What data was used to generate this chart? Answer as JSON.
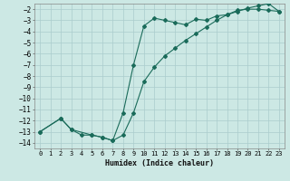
{
  "xlabel": "Humidex (Indice chaleur)",
  "ylabel": "",
  "bg_color": "#cce8e4",
  "grid_color": "#aacccc",
  "line_color": "#1a6b5a",
  "xlim": [
    -0.5,
    23.5
  ],
  "ylim": [
    -14.5,
    -1.5
  ],
  "xticks": [
    0,
    1,
    2,
    3,
    4,
    5,
    6,
    7,
    8,
    9,
    10,
    11,
    12,
    13,
    14,
    15,
    16,
    17,
    18,
    19,
    20,
    21,
    22,
    23
  ],
  "yticks": [
    -14,
    -13,
    -12,
    -11,
    -10,
    -9,
    -8,
    -7,
    -6,
    -5,
    -4,
    -3,
    -2
  ],
  "line1_x": [
    0,
    2,
    3,
    4,
    5,
    6,
    7,
    8,
    9,
    10,
    11,
    12,
    13,
    14,
    15,
    16,
    17,
    18,
    19,
    20,
    21,
    22,
    23
  ],
  "line1_y": [
    -13.0,
    -11.8,
    -12.8,
    -13.3,
    -13.3,
    -13.5,
    -13.8,
    -11.3,
    -7.0,
    -3.5,
    -2.8,
    -3.0,
    -3.2,
    -3.4,
    -2.9,
    -3.0,
    -2.6,
    -2.5,
    -2.1,
    -2.0,
    -2.0,
    -2.1,
    -2.2
  ],
  "line2_x": [
    0,
    2,
    3,
    5,
    6,
    7,
    8,
    9,
    10,
    11,
    12,
    13,
    14,
    15,
    16,
    17,
    18,
    19,
    20,
    21,
    22,
    23
  ],
  "line2_y": [
    -13.0,
    -11.8,
    -12.8,
    -13.3,
    -13.5,
    -13.8,
    -13.3,
    -11.3,
    -8.5,
    -7.2,
    -6.2,
    -5.5,
    -4.8,
    -4.2,
    -3.6,
    -3.0,
    -2.5,
    -2.2,
    -1.9,
    -1.7,
    -1.5,
    -2.2
  ]
}
